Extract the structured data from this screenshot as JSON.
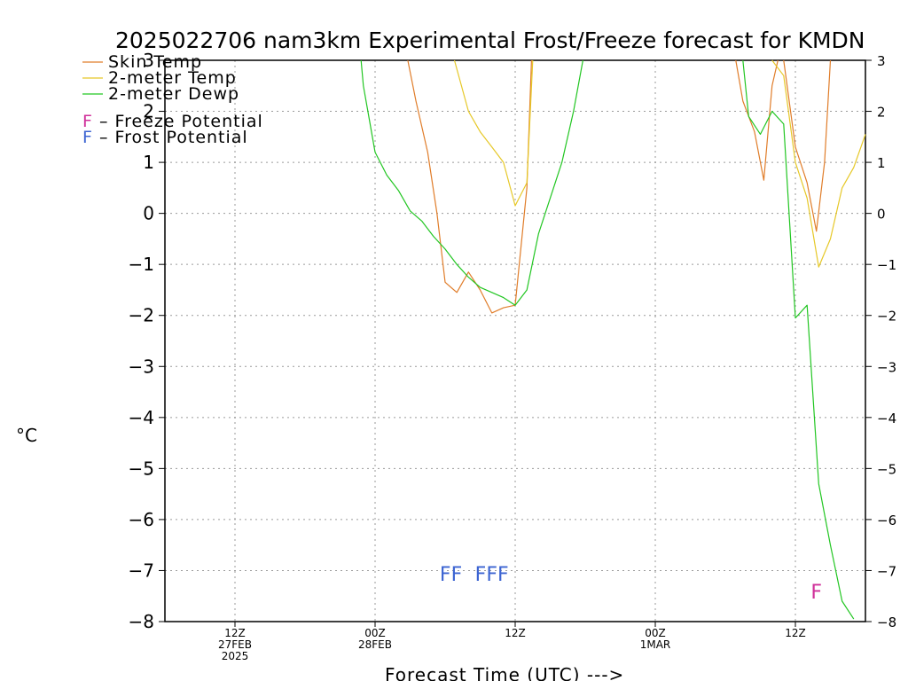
{
  "chart_data": {
    "type": "line",
    "title": "2025022706 nam3km Experimental Frost/Freeze forecast for KMDN",
    "xlabel": "Forecast Time (UTC) --->",
    "ylabel": "°C",
    "ylim": [
      -8,
      3
    ],
    "yticks": [
      3,
      2,
      1,
      0,
      -1,
      -2,
      -3,
      -4,
      -5,
      -6,
      -7,
      -8
    ],
    "xlim": [
      0,
      60
    ],
    "xticks": [
      {
        "x": 6,
        "line1": "12Z",
        "line2": "27FEB",
        "line3": "2025"
      },
      {
        "x": 18,
        "line1": "00Z",
        "line2": "28FEB",
        "line3": ""
      },
      {
        "x": 30,
        "line1": "12Z",
        "line2": "",
        "line3": ""
      },
      {
        "x": 42,
        "line1": "00Z",
        "line2": "1MAR",
        "line3": ""
      },
      {
        "x": 54,
        "line1": "12Z",
        "line2": "",
        "line3": ""
      }
    ],
    "grid": true,
    "legend_position": "top-left",
    "series": [
      {
        "name": "Skin Temp",
        "color": "#e07d2a",
        "points": [
          [
            20.8,
            3.0
          ],
          [
            21.5,
            2.2
          ],
          [
            22.5,
            1.2
          ],
          [
            23.3,
            0.0
          ],
          [
            24.0,
            -1.35
          ],
          [
            25.0,
            -1.55
          ],
          [
            26.0,
            -1.15
          ],
          [
            27.0,
            -1.5
          ],
          [
            28.0,
            -1.95
          ],
          [
            29.0,
            -1.85
          ],
          [
            30.0,
            -1.8
          ],
          [
            31.0,
            0.5
          ],
          [
            31.4,
            3.0
          ],
          [
            null,
            null
          ],
          [
            48.9,
            3.0
          ],
          [
            49.5,
            2.2
          ],
          [
            50.5,
            1.6
          ],
          [
            51.3,
            0.65
          ],
          [
            52.0,
            2.5
          ],
          [
            52.5,
            3.0
          ],
          [
            null,
            null
          ],
          [
            53.0,
            3.0
          ],
          [
            54.0,
            1.3
          ],
          [
            55.0,
            0.6
          ],
          [
            55.8,
            -0.35
          ],
          [
            56.5,
            1.0
          ],
          [
            57.0,
            3.0
          ]
        ]
      },
      {
        "name": "2-meter Temp",
        "color": "#e6c828",
        "points": [
          [
            24.8,
            3.0
          ],
          [
            26.0,
            2.0
          ],
          [
            27.0,
            1.6
          ],
          [
            28.0,
            1.3
          ],
          [
            29.0,
            1.0
          ],
          [
            30.0,
            0.15
          ],
          [
            31.0,
            0.6
          ],
          [
            31.5,
            3.0
          ],
          [
            null,
            null
          ],
          [
            52.0,
            3.0
          ],
          [
            53.0,
            2.7
          ],
          [
            54.0,
            1.0
          ],
          [
            55.0,
            0.3
          ],
          [
            56.0,
            -1.05
          ],
          [
            57.0,
            -0.5
          ],
          [
            58.0,
            0.5
          ],
          [
            59.0,
            0.9
          ],
          [
            60.0,
            1.55
          ]
        ]
      },
      {
        "name": "2-meter Dewp",
        "color": "#22c622",
        "points": [
          [
            16.8,
            3.0
          ],
          [
            17.0,
            2.5
          ],
          [
            18.0,
            1.2
          ],
          [
            19.0,
            0.75
          ],
          [
            20.0,
            0.45
          ],
          [
            21.0,
            0.05
          ],
          [
            22.0,
            -0.15
          ],
          [
            23.0,
            -0.45
          ],
          [
            24.0,
            -0.7
          ],
          [
            25.0,
            -1.0
          ],
          [
            26.0,
            -1.25
          ],
          [
            27.0,
            -1.45
          ],
          [
            28.0,
            -1.55
          ],
          [
            29.0,
            -1.65
          ],
          [
            30.0,
            -1.8
          ],
          [
            31.0,
            -1.5
          ],
          [
            32.0,
            -0.4
          ],
          [
            33.0,
            0.3
          ],
          [
            34.0,
            1.0
          ],
          [
            35.0,
            2.0
          ],
          [
            35.8,
            3.0
          ],
          [
            null,
            null
          ],
          [
            49.5,
            3.0
          ],
          [
            50.0,
            1.9
          ],
          [
            51.0,
            1.55
          ],
          [
            52.0,
            2.0
          ],
          [
            53.0,
            1.75
          ],
          [
            54.0,
            -2.05
          ],
          [
            55.0,
            -1.8
          ],
          [
            56.0,
            -5.3
          ],
          [
            57.0,
            -6.5
          ],
          [
            58.0,
            -7.6
          ],
          [
            59.0,
            -7.95
          ]
        ]
      }
    ],
    "markers": [
      {
        "label": "FF",
        "kind": "frost",
        "x": 24.5,
        "y": -7.2
      },
      {
        "label": "FFF",
        "kind": "frost",
        "x": 28.0,
        "y": -7.2
      },
      {
        "label": "F",
        "kind": "freeze",
        "x": 55.8,
        "y": -7.55
      }
    ],
    "legend": {
      "lines": [
        {
          "label": "Skin Temp",
          "color": "#e07d2a"
        },
        {
          "label": "2-meter Temp",
          "color": "#e6c828"
        },
        {
          "label": "2-meter Dewp",
          "color": "#22c622"
        }
      ],
      "letters": [
        {
          "letter": "F",
          "text": " – Freeze Potential",
          "color": "#d0309a"
        },
        {
          "letter": "F",
          "text": " – Frost Potential",
          "color": "#3c64d2"
        }
      ]
    }
  }
}
